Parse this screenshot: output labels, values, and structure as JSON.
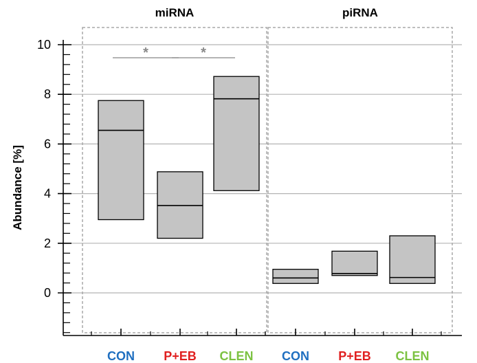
{
  "chart_data": {
    "type": "box",
    "ylabel": "Abundance [%]",
    "ylim": [
      -1.6,
      10.4
    ],
    "yticks": [
      "10",
      "8",
      "6",
      "4",
      "2",
      "0"
    ],
    "grid": true,
    "panels": [
      {
        "title": "miRNA",
        "categories": [
          "CON",
          "P+EB",
          "CLEN"
        ],
        "boxes": [
          {
            "q1": 2.95,
            "median": 6.55,
            "q3": 7.75
          },
          {
            "q1": 2.2,
            "median": 3.52,
            "q3": 4.88
          },
          {
            "q1": 4.12,
            "median": 7.82,
            "q3": 8.72
          }
        ],
        "significance": [
          {
            "label": "*",
            "from": "CON",
            "to": "P+EB"
          },
          {
            "label": "*",
            "from": "P+EB",
            "to": "CLEN"
          }
        ]
      },
      {
        "title": "piRNA",
        "categories": [
          "CON",
          "P+EB",
          "CLEN"
        ],
        "boxes": [
          {
            "q1": 0.38,
            "median": 0.6,
            "q3": 0.95
          },
          {
            "q1": 0.7,
            "median": 0.78,
            "q3": 1.68
          },
          {
            "q1": 0.38,
            "median": 0.62,
            "q3": 2.3
          }
        ],
        "significance": []
      }
    ],
    "category_colors": {
      "CON": "#1f6fc0",
      "P+EB": "#e02020",
      "CLEN": "#7cc242"
    }
  }
}
